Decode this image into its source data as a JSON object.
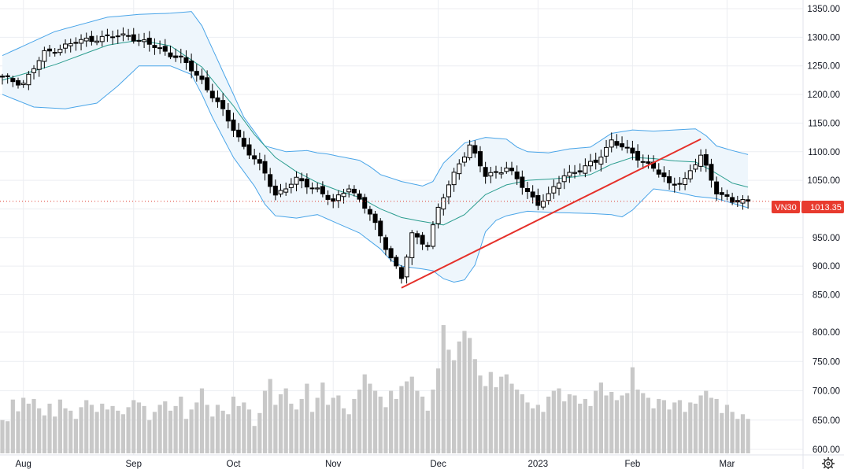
{
  "chart_data": {
    "type": "candlestick",
    "symbol": "VN30",
    "last_price": 1013.35,
    "last_price_label": "1013.35",
    "symbol_label": "VN30",
    "price_axis": {
      "ylim": [
        845,
        1362
      ],
      "ticks": [
        850,
        900,
        950,
        1000,
        1050,
        1100,
        1150,
        1200,
        1250,
        1300,
        1350
      ],
      "tick_labels": [
        "850.00",
        "900.00",
        "950.00",
        "1000.00",
        "1050.00",
        "1100.00",
        "1150.00",
        "1200.00",
        "1250.00",
        "1300.00",
        "1350.00"
      ]
    },
    "volume_axis": {
      "ylim": [
        595,
        820
      ],
      "ticks": [
        600,
        650,
        700,
        750,
        800
      ],
      "tick_labels": [
        "600.00",
        "650.00",
        "700.00",
        "750.00",
        "800.00"
      ]
    },
    "x_labels": [
      "Aug",
      "Sep",
      "Oct",
      "Nov",
      "Dec",
      "2023",
      "Feb",
      "Mar"
    ],
    "x_label_index": [
      4,
      25,
      44,
      63,
      83,
      102,
      120,
      138
    ],
    "bars": 143,
    "close_key": [
      [
        0,
        1228
      ],
      [
        4,
        1220
      ],
      [
        8,
        1272
      ],
      [
        12,
        1285
      ],
      [
        16,
        1296
      ],
      [
        21,
        1301
      ],
      [
        24,
        1304
      ],
      [
        26,
        1294
      ],
      [
        30,
        1280
      ],
      [
        34,
        1262
      ],
      [
        38,
        1225
      ],
      [
        42,
        1170
      ],
      [
        46,
        1110
      ],
      [
        50,
        1062
      ],
      [
        52,
        1025
      ],
      [
        56,
        1050
      ],
      [
        60,
        1035
      ],
      [
        63,
        1010
      ],
      [
        66,
        1040
      ],
      [
        70,
        990
      ],
      [
        73,
        935
      ],
      [
        76,
        878
      ],
      [
        78,
        955
      ],
      [
        81,
        938
      ],
      [
        83,
        1000
      ],
      [
        87,
        1082
      ],
      [
        89,
        1110
      ],
      [
        92,
        1058
      ],
      [
        96,
        1072
      ],
      [
        99,
        1040
      ],
      [
        102,
        1010
      ],
      [
        104,
        1022
      ],
      [
        107,
        1060
      ],
      [
        110,
        1068
      ],
      [
        113,
        1082
      ],
      [
        116,
        1120
      ],
      [
        118,
        1108
      ],
      [
        121,
        1090
      ],
      [
        124,
        1072
      ],
      [
        127,
        1042
      ],
      [
        130,
        1052
      ],
      [
        133,
        1092
      ],
      [
        136,
        1032
      ],
      [
        139,
        1012
      ],
      [
        142,
        1013
      ]
    ],
    "volumes": [
      650,
      648,
      685,
      665,
      688,
      678,
      686,
      670,
      658,
      678,
      656,
      685,
      670,
      666,
      652,
      672,
      684,
      676,
      664,
      678,
      668,
      674,
      666,
      660,
      672,
      684,
      680,
      674,
      650,
      664,
      676,
      682,
      666,
      674,
      690,
      652,
      668,
      680,
      704,
      676,
      656,
      676,
      666,
      660,
      690,
      674,
      680,
      668,
      640,
      662,
      700,
      720,
      676,
      694,
      704,
      678,
      668,
      686,
      712,
      664,
      688,
      714,
      676,
      688,
      692,
      670,
      660,
      686,
      702,
      728,
      712,
      700,
      690,
      672,
      700,
      686,
      708,
      716,
      724,
      700,
      690,
      666,
      702,
      738,
      812,
      770,
      752,
      784,
      802,
      790,
      754,
      726,
      708,
      732,
      706,
      724,
      728,
      712,
      702,
      694,
      680,
      670,
      676,
      664,
      690,
      700,
      704,
      682,
      694,
      692,
      678,
      686,
      674,
      700,
      714,
      692,
      698,
      684,
      692,
      696,
      740,
      702,
      696,
      688,
      670,
      686,
      684,
      668,
      680,
      684,
      664,
      680,
      678,
      692,
      700,
      688,
      686,
      662,
      676,
      664,
      652,
      660,
      652
    ],
    "bollinger": {
      "mid_key": [
        [
          0,
          1225
        ],
        [
          10,
          1252
        ],
        [
          20,
          1286
        ],
        [
          26,
          1295
        ],
        [
          32,
          1285
        ],
        [
          38,
          1248
        ],
        [
          44,
          1180
        ],
        [
          48,
          1130
        ],
        [
          52,
          1090
        ],
        [
          56,
          1065
        ],
        [
          60,
          1046
        ],
        [
          64,
          1032
        ],
        [
          68,
          1020
        ],
        [
          72,
          1000
        ],
        [
          76,
          985
        ],
        [
          80,
          978
        ],
        [
          84,
          972
        ],
        [
          88,
          990
        ],
        [
          92,
          1025
        ],
        [
          96,
          1042
        ],
        [
          100,
          1050
        ],
        [
          104,
          1052
        ],
        [
          108,
          1055
        ],
        [
          112,
          1060
        ],
        [
          116,
          1078
        ],
        [
          120,
          1090
        ],
        [
          124,
          1088
        ],
        [
          128,
          1084
        ],
        [
          132,
          1082
        ],
        [
          136,
          1062
        ],
        [
          139,
          1045
        ],
        [
          142,
          1038
        ]
      ],
      "upper_key": [
        [
          0,
          1268
        ],
        [
          10,
          1310
        ],
        [
          20,
          1335
        ],
        [
          26,
          1340
        ],
        [
          32,
          1342
        ],
        [
          36,
          1345
        ],
        [
          38,
          1320
        ],
        [
          42,
          1240
        ],
        [
          46,
          1160
        ],
        [
          50,
          1110
        ],
        [
          54,
          1100
        ],
        [
          58,
          1102
        ],
        [
          60,
          1098
        ],
        [
          62,
          1096
        ],
        [
          64,
          1092
        ],
        [
          68,
          1085
        ],
        [
          70,
          1074
        ],
        [
          72,
          1060
        ],
        [
          76,
          1048
        ],
        [
          80,
          1040
        ],
        [
          82,
          1048
        ],
        [
          84,
          1080
        ],
        [
          88,
          1115
        ],
        [
          92,
          1125
        ],
        [
          96,
          1122
        ],
        [
          98,
          1108
        ],
        [
          100,
          1100
        ],
        [
          104,
          1098
        ],
        [
          108,
          1105
        ],
        [
          112,
          1108
        ],
        [
          116,
          1132
        ],
        [
          120,
          1138
        ],
        [
          124,
          1136
        ],
        [
          128,
          1138
        ],
        [
          132,
          1140
        ],
        [
          134,
          1128
        ],
        [
          136,
          1110
        ],
        [
          139,
          1102
        ],
        [
          142,
          1095
        ]
      ],
      "lower_key": [
        [
          0,
          1200
        ],
        [
          6,
          1178
        ],
        [
          12,
          1175
        ],
        [
          18,
          1185
        ],
        [
          22,
          1215
        ],
        [
          26,
          1250
        ],
        [
          32,
          1250
        ],
        [
          36,
          1235
        ],
        [
          38,
          1200
        ],
        [
          40,
          1160
        ],
        [
          44,
          1090
        ],
        [
          48,
          1040
        ],
        [
          50,
          1008
        ],
        [
          52,
          988
        ],
        [
          56,
          984
        ],
        [
          60,
          990
        ],
        [
          64,
          974
        ],
        [
          68,
          958
        ],
        [
          72,
          930
        ],
        [
          74,
          910
        ],
        [
          76,
          900
        ],
        [
          80,
          895
        ],
        [
          82,
          892
        ],
        [
          84,
          878
        ],
        [
          86,
          872
        ],
        [
          88,
          876
        ],
        [
          90,
          902
        ],
        [
          92,
          960
        ],
        [
          94,
          980
        ],
        [
          96,
          988
        ],
        [
          100,
          996
        ],
        [
          104,
          994
        ],
        [
          108,
          993
        ],
        [
          112,
          992
        ],
        [
          116,
          990
        ],
        [
          118,
          986
        ],
        [
          120,
          998
        ],
        [
          124,
          1035
        ],
        [
          128,
          1030
        ],
        [
          132,
          1022
        ],
        [
          136,
          1018
        ],
        [
          139,
          1010
        ],
        [
          142,
          1002
        ]
      ]
    },
    "trendline": {
      "from": [
        76,
        862
      ],
      "to": [
        133,
        1122
      ]
    },
    "colors": {
      "up_body": "#ffffff",
      "down_body": "#000000",
      "wick": "#000000",
      "volume": "#c8c8c8",
      "band_fill": "#eef6fc",
      "band_line": "#4aa5e8",
      "mid_line": "#2b9d8f",
      "trend": "#e5302a",
      "price_label_bg": "#e83a2e",
      "grid": "#eceef2",
      "last_price_line": "#e03a2e"
    }
  },
  "ui": {
    "settings_icon": "gear-icon"
  }
}
